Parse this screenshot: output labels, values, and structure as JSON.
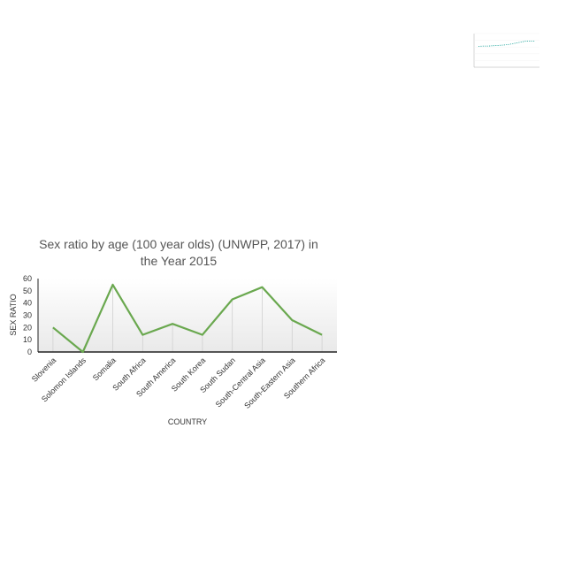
{
  "chart_data": [
    {
      "type": "line",
      "title_line1": "",
      "title_line2": "",
      "xlabel": "",
      "ylabel": "",
      "color": "#1aa39a",
      "x": [
        1,
        2,
        3,
        4,
        5,
        6,
        7,
        8,
        9,
        10,
        11,
        12
      ],
      "values": [
        0.62,
        0.63,
        0.63,
        0.64,
        0.65,
        0.66,
        0.68,
        0.71,
        0.74,
        0.77,
        0.78,
        0.78
      ],
      "ylim": [
        0,
        1
      ]
    },
    {
      "type": "line",
      "title": "Sex ratio by age (100 year olds) (UNWPP, 2017) in the Year 2015",
      "title_line1": "Sex ratio by age (100 year olds) (UNWPP, 2017) in",
      "title_line2": "the Year 2015",
      "xlabel": "COUNTRY",
      "ylabel": "SEX RATIO",
      "color": "#6aa84f",
      "categories": [
        "Slovenia",
        "Solomon Islands",
        "Somalia",
        "South Africa",
        "South America",
        "South Korea",
        "South Sudan",
        "South-Central Asia",
        "South-Eastern Asia",
        "Southern Africa"
      ],
      "values": [
        20,
        0,
        55,
        14,
        23,
        14,
        43,
        53,
        26,
        14
      ],
      "yticks": [
        0,
        10,
        20,
        30,
        40,
        50,
        60
      ],
      "ylim": [
        0,
        60
      ],
      "grid": false,
      "legend": "none"
    }
  ]
}
